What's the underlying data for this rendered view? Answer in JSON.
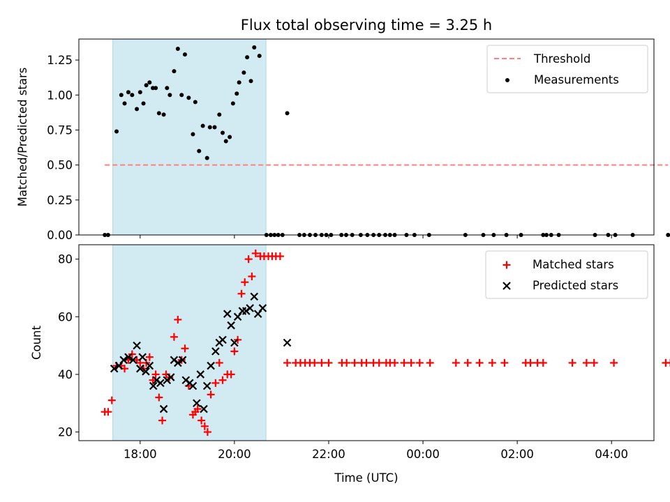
{
  "chart_data": {
    "type": "scatter",
    "title": "Flux total observing time = 3.25 h",
    "xlabel": "Time (UTC)",
    "x_axis": {
      "unit": "hours since 00:00 of first night (UTC)",
      "range_hours": [
        16.7,
        28.9
      ],
      "ticks": [
        {
          "value": 18,
          "label": "18:00"
        },
        {
          "value": 20,
          "label": "20:00"
        },
        {
          "value": 22,
          "label": "22:00"
        },
        {
          "value": 24,
          "label": "00:00"
        },
        {
          "value": 26,
          "label": "02:00"
        },
        {
          "value": 28,
          "label": "04:00"
        }
      ]
    },
    "shaded_interval_hours": [
      17.42,
      20.67
    ],
    "shade_color": "#add8e6",
    "panels": [
      {
        "ylabel": "Matched/Predicted stars",
        "ylim": [
          0,
          1.4
        ],
        "yticks": [
          {
            "value": 0,
            "label": "0.00"
          },
          {
            "value": 0.25,
            "label": "0.25"
          },
          {
            "value": 0.5,
            "label": "0.50"
          },
          {
            "value": 0.75,
            "label": "0.75"
          },
          {
            "value": 1.0,
            "label": "1.00"
          },
          {
            "value": 1.25,
            "label": "1.25"
          }
        ],
        "legend": {
          "position": "upper right",
          "entries": [
            "Threshold",
            "Measurements"
          ]
        },
        "threshold": {
          "name": "Threshold",
          "value": 0.5,
          "x_range": [
            17.25,
            29.2
          ],
          "color": "#ff7f7f"
        },
        "series": [
          {
            "name": "Measurements",
            "marker": "dot",
            "color": "#000000",
            "points": [
              [
                17.25,
                0
              ],
              [
                17.32,
                0
              ],
              [
                17.5,
                0.74
              ],
              [
                17.6,
                1.0
              ],
              [
                17.67,
                0.94
              ],
              [
                17.75,
                1.02
              ],
              [
                17.83,
                1.0
              ],
              [
                17.93,
                0.9
              ],
              [
                18.0,
                1.02
              ],
              [
                18.07,
                0.94
              ],
              [
                18.13,
                1.07
              ],
              [
                18.2,
                1.09
              ],
              [
                18.27,
                1.05
              ],
              [
                18.33,
                1.05
              ],
              [
                18.4,
                0.87
              ],
              [
                18.5,
                0.86
              ],
              [
                18.57,
                1.05
              ],
              [
                18.63,
                1.0
              ],
              [
                18.72,
                1.17
              ],
              [
                18.8,
                1.33
              ],
              [
                18.88,
                1.0
              ],
              [
                18.95,
                1.29
              ],
              [
                19.03,
                0.98
              ],
              [
                19.12,
                0.72
              ],
              [
                19.17,
                0.95
              ],
              [
                19.25,
                0.6
              ],
              [
                19.33,
                0.78
              ],
              [
                19.42,
                0.55
              ],
              [
                19.48,
                0.77
              ],
              [
                19.58,
                0.77
              ],
              [
                19.68,
                0.86
              ],
              [
                19.75,
                0.73
              ],
              [
                19.82,
                0.67
              ],
              [
                19.9,
                0.7
              ],
              [
                19.97,
                0.94
              ],
              [
                20.05,
                1.01
              ],
              [
                20.1,
                1.09
              ],
              [
                20.2,
                1.16
              ],
              [
                20.27,
                1.27
              ],
              [
                20.35,
                1.1
              ],
              [
                20.42,
                1.34
              ],
              [
                20.53,
                1.28
              ],
              [
                20.68,
                0
              ],
              [
                20.77,
                0
              ],
              [
                20.85,
                0
              ],
              [
                20.93,
                0
              ],
              [
                21.02,
                0
              ],
              [
                21.12,
                0.87
              ],
              [
                21.38,
                0
              ],
              [
                21.48,
                0
              ],
              [
                21.6,
                0
              ],
              [
                21.72,
                0
              ],
              [
                21.85,
                0
              ],
              [
                21.95,
                0
              ],
              [
                22.05,
                0
              ],
              [
                22.27,
                0
              ],
              [
                22.37,
                0
              ],
              [
                22.5,
                0
              ],
              [
                22.68,
                0
              ],
              [
                22.82,
                0
              ],
              [
                22.95,
                0
              ],
              [
                23.07,
                0
              ],
              [
                23.2,
                0
              ],
              [
                23.3,
                0
              ],
              [
                23.4,
                0
              ],
              [
                23.65,
                0
              ],
              [
                23.82,
                0
              ],
              [
                24.13,
                0
              ],
              [
                24.9,
                0
              ],
              [
                25.28,
                0
              ],
              [
                25.5,
                0
              ],
              [
                25.77,
                0
              ],
              [
                26.08,
                0
              ],
              [
                26.55,
                0
              ],
              [
                26.62,
                0
              ],
              [
                26.72,
                0
              ],
              [
                26.88,
                0
              ],
              [
                27.65,
                0
              ],
              [
                27.93,
                0
              ],
              [
                28.08,
                0
              ],
              [
                28.45,
                0
              ],
              [
                29.2,
                0
              ],
              [
                29.27,
                0
              ]
            ]
          }
        ]
      },
      {
        "ylabel": "Count",
        "ylim": [
          17,
          85
        ],
        "yticks": [
          {
            "value": 20,
            "label": "20"
          },
          {
            "value": 40,
            "label": "40"
          },
          {
            "value": 60,
            "label": "60"
          },
          {
            "value": 80,
            "label": "80"
          }
        ],
        "legend": {
          "position": "upper right",
          "entries": [
            "Matched stars",
            "Predicted stars"
          ]
        },
        "series": [
          {
            "name": "Matched stars",
            "marker": "plus",
            "color": "#ff0000",
            "points": [
              [
                17.25,
                27
              ],
              [
                17.32,
                27
              ],
              [
                17.4,
                31
              ],
              [
                17.5,
                43
              ],
              [
                17.6,
                43
              ],
              [
                17.67,
                42
              ],
              [
                17.75,
                45
              ],
              [
                17.83,
                47
              ],
              [
                17.93,
                45
              ],
              [
                18.0,
                44
              ],
              [
                18.07,
                42
              ],
              [
                18.13,
                44
              ],
              [
                18.2,
                46
              ],
              [
                18.27,
                38
              ],
              [
                18.33,
                40
              ],
              [
                18.4,
                32
              ],
              [
                18.47,
                24
              ],
              [
                18.55,
                40
              ],
              [
                18.62,
                39
              ],
              [
                18.72,
                53
              ],
              [
                18.8,
                59
              ],
              [
                18.88,
                45
              ],
              [
                18.95,
                49
              ],
              [
                19.03,
                36
              ],
              [
                19.12,
                26
              ],
              [
                19.17,
                27
              ],
              [
                19.22,
                28
              ],
              [
                19.3,
                24
              ],
              [
                19.37,
                22
              ],
              [
                19.43,
                20
              ],
              [
                19.5,
                33
              ],
              [
                19.6,
                37
              ],
              [
                19.68,
                44
              ],
              [
                19.75,
                38
              ],
              [
                19.85,
                40
              ],
              [
                19.93,
                40
              ],
              [
                20.0,
                48
              ],
              [
                20.07,
                52
              ],
              [
                20.15,
                68
              ],
              [
                20.22,
                72
              ],
              [
                20.3,
                80
              ],
              [
                20.37,
                74
              ],
              [
                20.45,
                82
              ],
              [
                20.55,
                81
              ],
              [
                20.63,
                81
              ],
              [
                20.72,
                81
              ],
              [
                20.8,
                81
              ],
              [
                20.88,
                81
              ],
              [
                20.97,
                81
              ],
              [
                21.12,
                44
              ],
              [
                21.3,
                44
              ],
              [
                21.4,
                44
              ],
              [
                21.5,
                44
              ],
              [
                21.6,
                44
              ],
              [
                21.7,
                44
              ],
              [
                21.85,
                44
              ],
              [
                22.0,
                44
              ],
              [
                22.28,
                44
              ],
              [
                22.38,
                44
              ],
              [
                22.55,
                44
              ],
              [
                22.7,
                44
              ],
              [
                22.8,
                44
              ],
              [
                22.95,
                44
              ],
              [
                23.07,
                44
              ],
              [
                23.22,
                44
              ],
              [
                23.3,
                44
              ],
              [
                23.4,
                44
              ],
              [
                23.6,
                44
              ],
              [
                23.75,
                44
              ],
              [
                23.93,
                44
              ],
              [
                24.15,
                44
              ],
              [
                24.7,
                44
              ],
              [
                24.95,
                44
              ],
              [
                25.2,
                44
              ],
              [
                25.47,
                44
              ],
              [
                25.73,
                44
              ],
              [
                26.18,
                44
              ],
              [
                26.28,
                44
              ],
              [
                26.43,
                44
              ],
              [
                26.55,
                44
              ],
              [
                27.17,
                44
              ],
              [
                27.47,
                44
              ],
              [
                27.63,
                44
              ],
              [
                28.05,
                44
              ],
              [
                29.15,
                44
              ],
              [
                29.25,
                44
              ]
            ]
          },
          {
            "name": "Predicted stars",
            "marker": "x",
            "color": "#000000",
            "points": [
              [
                17.45,
                42
              ],
              [
                17.55,
                43
              ],
              [
                17.65,
                45
              ],
              [
                17.75,
                46
              ],
              [
                17.85,
                45
              ],
              [
                17.93,
                50
              ],
              [
                18.0,
                42
              ],
              [
                18.05,
                46
              ],
              [
                18.12,
                41
              ],
              [
                18.2,
                43
              ],
              [
                18.28,
                36
              ],
              [
                18.35,
                38
              ],
              [
                18.43,
                37
              ],
              [
                18.5,
                28
              ],
              [
                18.57,
                38
              ],
              [
                18.65,
                39
              ],
              [
                18.72,
                45
              ],
              [
                18.8,
                44
              ],
              [
                18.9,
                45
              ],
              [
                18.97,
                38
              ],
              [
                19.05,
                37
              ],
              [
                19.12,
                36
              ],
              [
                19.2,
                30
              ],
              [
                19.28,
                40
              ],
              [
                19.35,
                28
              ],
              [
                19.42,
                36
              ],
              [
                19.5,
                43
              ],
              [
                19.6,
                48
              ],
              [
                19.68,
                51
              ],
              [
                19.75,
                52
              ],
              [
                19.85,
                61
              ],
              [
                19.93,
                57
              ],
              [
                20.0,
                51
              ],
              [
                20.07,
                60
              ],
              [
                20.17,
                62
              ],
              [
                20.25,
                62
              ],
              [
                20.33,
                63
              ],
              [
                20.42,
                67
              ],
              [
                20.5,
                61
              ],
              [
                20.6,
                63
              ],
              [
                21.12,
                51
              ]
            ]
          }
        ]
      }
    ]
  }
}
